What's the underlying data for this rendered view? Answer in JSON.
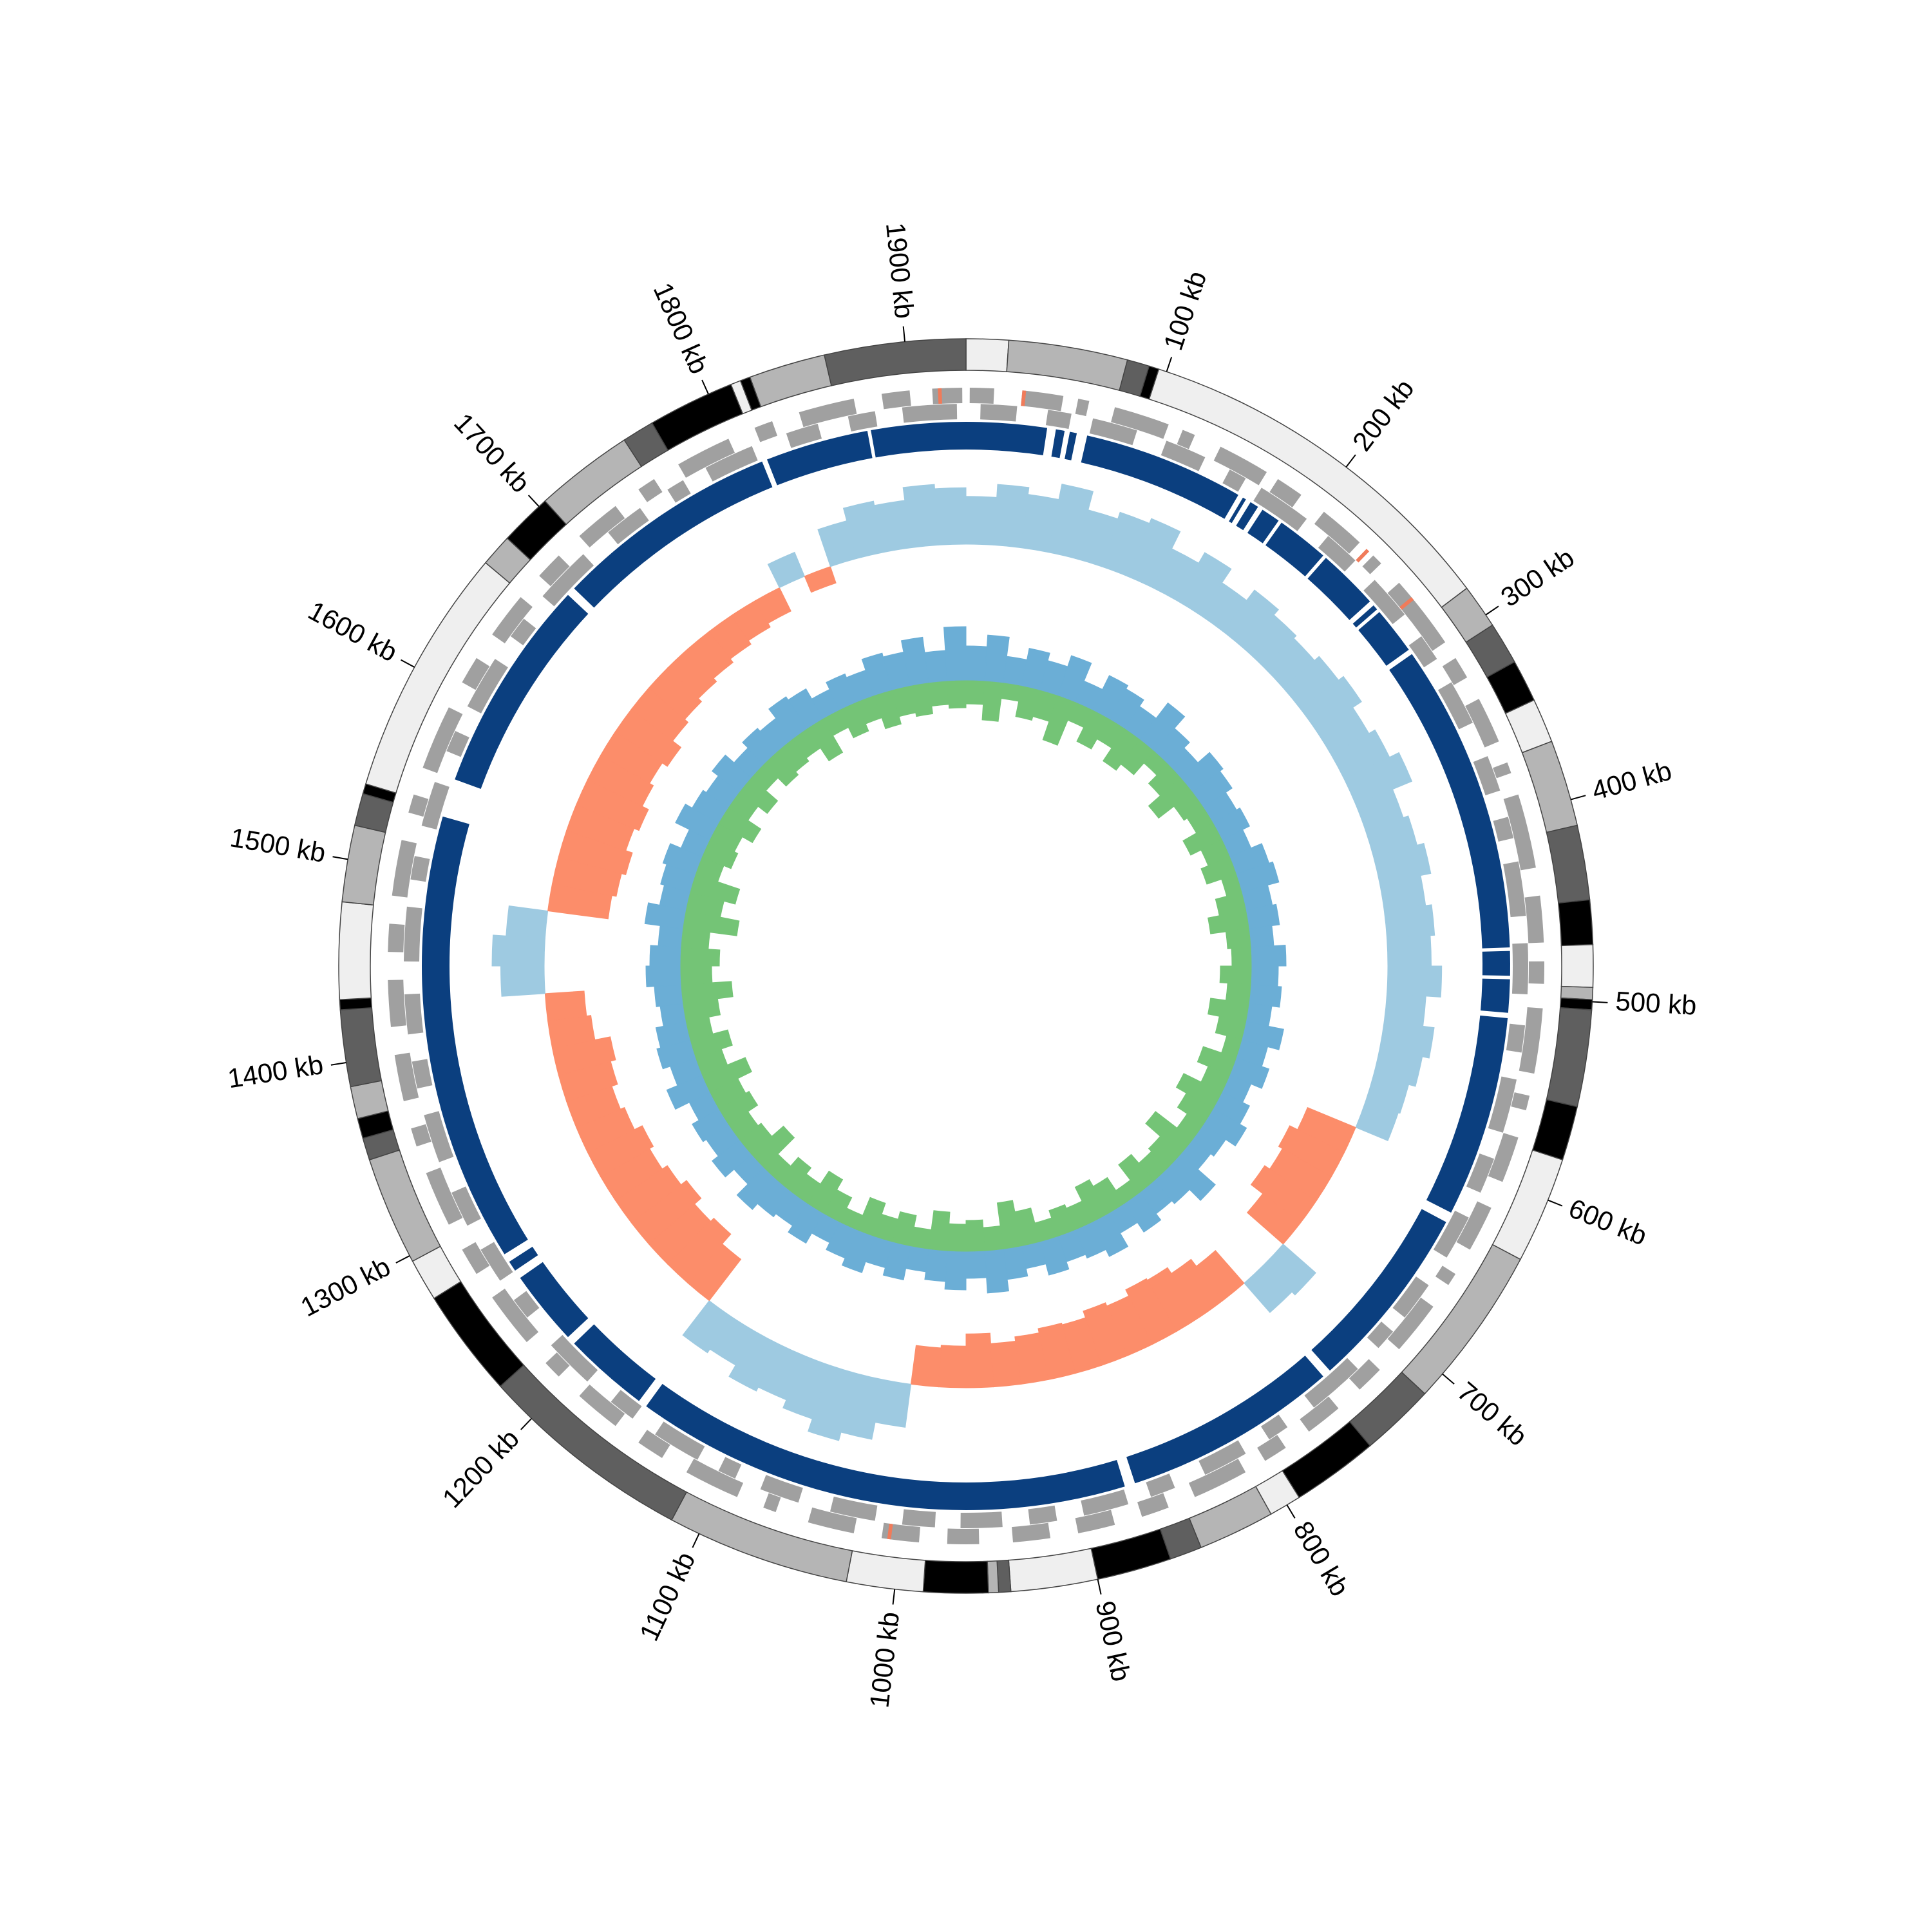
{
  "chart_data": {
    "type": "circular",
    "xlim": [
      0,
      1930
    ],
    "xticks": [
      {
        "value": 100,
        "label": "100 kb"
      },
      {
        "value": 200,
        "label": "200 kb"
      },
      {
        "value": 300,
        "label": "300 kb"
      },
      {
        "value": 400,
        "label": "400 kb"
      },
      {
        "value": 500,
        "label": "500 kb"
      },
      {
        "value": 600,
        "label": "600 kb"
      },
      {
        "value": 700,
        "label": "700 kb"
      },
      {
        "value": 800,
        "label": "800 kb"
      },
      {
        "value": 900,
        "label": "900 kb"
      },
      {
        "value": 1000,
        "label": "1000 kb"
      },
      {
        "value": 1100,
        "label": "1100 kb"
      },
      {
        "value": 1200,
        "label": "1200 kb"
      },
      {
        "value": 1300,
        "label": "1300 kb"
      },
      {
        "value": 1400,
        "label": "1400 kb"
      },
      {
        "value": 1500,
        "label": "1500 kb"
      },
      {
        "value": 1600,
        "label": "1600 kb"
      },
      {
        "value": 1700,
        "label": "1700 kb"
      },
      {
        "value": 1800,
        "label": "1800 kb"
      },
      {
        "value": 1900,
        "label": "1900 kb"
      }
    ],
    "bands": [
      {
        "start": 0,
        "end": 21,
        "color": "#efefef"
      },
      {
        "start": 21,
        "end": 80,
        "color": "#b5b5b5"
      },
      {
        "start": 80,
        "end": 91,
        "color": "#5f5f5f"
      },
      {
        "start": 91,
        "end": 96,
        "color": "#000000"
      },
      {
        "start": 96,
        "end": 284,
        "color": "#efefef"
      },
      {
        "start": 284,
        "end": 306,
        "color": "#b5b5b5"
      },
      {
        "start": 306,
        "end": 327,
        "color": "#5f5f5f"
      },
      {
        "start": 327,
        "end": 348,
        "color": "#000000"
      },
      {
        "start": 348,
        "end": 370,
        "color": "#efefef"
      },
      {
        "start": 370,
        "end": 413,
        "color": "#b5b5b5"
      },
      {
        "start": 413,
        "end": 450,
        "color": "#5f5f5f"
      },
      {
        "start": 450,
        "end": 472,
        "color": "#000000"
      },
      {
        "start": 472,
        "end": 493,
        "color": "#efefef"
      },
      {
        "start": 493,
        "end": 499,
        "color": "#b5b5b5"
      },
      {
        "start": 499,
        "end": 504,
        "color": "#000000"
      },
      {
        "start": 504,
        "end": 552,
        "color": "#5f5f5f"
      },
      {
        "start": 552,
        "end": 579,
        "color": "#000000"
      },
      {
        "start": 579,
        "end": 632,
        "color": "#efefef"
      },
      {
        "start": 632,
        "end": 713,
        "color": "#b5b5b5"
      },
      {
        "start": 713,
        "end": 750,
        "color": "#5f5f5f"
      },
      {
        "start": 750,
        "end": 793,
        "color": "#000000"
      },
      {
        "start": 793,
        "end": 809,
        "color": "#efefef"
      },
      {
        "start": 809,
        "end": 847,
        "color": "#b5b5b5"
      },
      {
        "start": 847,
        "end": 863,
        "color": "#5f5f5f"
      },
      {
        "start": 863,
        "end": 900,
        "color": "#000000"
      },
      {
        "start": 900,
        "end": 943,
        "color": "#efefef"
      },
      {
        "start": 943,
        "end": 949,
        "color": "#5f5f5f"
      },
      {
        "start": 949,
        "end": 954,
        "color": "#b5b5b5"
      },
      {
        "start": 954,
        "end": 986,
        "color": "#000000"
      },
      {
        "start": 986,
        "end": 1024,
        "color": "#efefef"
      },
      {
        "start": 1024,
        "end": 1115,
        "color": "#b5b5b5"
      },
      {
        "start": 1115,
        "end": 1222,
        "color": "#5f5f5f"
      },
      {
        "start": 1222,
        "end": 1276,
        "color": "#000000"
      },
      {
        "start": 1276,
        "end": 1297,
        "color": "#efefef"
      },
      {
        "start": 1297,
        "end": 1351,
        "color": "#b5b5b5"
      },
      {
        "start": 1351,
        "end": 1362,
        "color": "#5f5f5f"
      },
      {
        "start": 1362,
        "end": 1372,
        "color": "#000000"
      },
      {
        "start": 1372,
        "end": 1388,
        "color": "#b5b5b5"
      },
      {
        "start": 1388,
        "end": 1426,
        "color": "#5f5f5f"
      },
      {
        "start": 1426,
        "end": 1431,
        "color": "#000000"
      },
      {
        "start": 1431,
        "end": 1479,
        "color": "#efefef"
      },
      {
        "start": 1479,
        "end": 1517,
        "color": "#b5b5b5"
      },
      {
        "start": 1517,
        "end": 1533,
        "color": "#5f5f5f"
      },
      {
        "start": 1533,
        "end": 1538,
        "color": "#000000"
      },
      {
        "start": 1538,
        "end": 1662,
        "color": "#efefef"
      },
      {
        "start": 1662,
        "end": 1678,
        "color": "#b5b5b5"
      },
      {
        "start": 1678,
        "end": 1704,
        "color": "#000000"
      },
      {
        "start": 1704,
        "end": 1753,
        "color": "#b5b5b5"
      },
      {
        "start": 1753,
        "end": 1769,
        "color": "#5f5f5f"
      },
      {
        "start": 1769,
        "end": 1812,
        "color": "#000000"
      },
      {
        "start": 1812,
        "end": 1817,
        "color": "#efefef"
      },
      {
        "start": 1817,
        "end": 1822,
        "color": "#000000"
      },
      {
        "start": 1822,
        "end": 1860,
        "color": "#b5b5b5"
      },
      {
        "start": 1860,
        "end": 1930,
        "color": "#5f5f5f"
      }
    ],
    "genes": {
      "color": "#a0a0a0",
      "forward": [
        [
          2,
          15
        ],
        [
          30,
          52
        ],
        [
          60,
          66
        ],
        [
          80,
          110
        ],
        [
          118,
          125
        ],
        [
          140,
          168
        ],
        [
          175,
          190
        ],
        [
          205,
          230
        ],
        [
          240,
          246
        ],
        [
          260,
          300
        ],
        [
          310,
          322
        ],
        [
          335,
          360
        ],
        [
          372,
          378
        ],
        [
          390,
          430
        ],
        [
          445,
          470
        ],
        [
          480,
          492
        ],
        [
          505,
          540
        ],
        [
          552,
          560
        ],
        [
          575,
          600
        ],
        [
          615,
          640
        ],
        [
          655,
          662
        ],
        [
          676,
          705
        ],
        [
          720,
          735
        ],
        [
          750,
          770
        ],
        [
          785,
          798
        ],
        [
          810,
          840
        ],
        [
          855,
          870
        ],
        [
          885,
          905
        ],
        [
          920,
          940
        ],
        [
          958,
          975
        ],
        [
          990,
          1010
        ],
        [
          1025,
          1050
        ],
        [
          1068,
          1075
        ],
        [
          1090,
          1120
        ],
        [
          1135,
          1150
        ],
        [
          1165,
          1190
        ],
        [
          1205,
          1215
        ],
        [
          1230,
          1260
        ],
        [
          1275,
          1290
        ],
        [
          1305,
          1335
        ],
        [
          1350,
          1360
        ],
        [
          1375,
          1400
        ],
        [
          1415,
          1440
        ],
        [
          1455,
          1470
        ],
        [
          1485,
          1515
        ],
        [
          1530,
          1540
        ],
        [
          1555,
          1590
        ],
        [
          1605,
          1620
        ],
        [
          1635,
          1660
        ],
        [
          1675,
          1690
        ],
        [
          1705,
          1730
        ],
        [
          1745,
          1755
        ],
        [
          1770,
          1800
        ],
        [
          1815,
          1825
        ],
        [
          1840,
          1870
        ],
        [
          1885,
          1900
        ],
        [
          1912,
          1928
        ]
      ],
      "reverse": [
        [
          8,
          28
        ],
        [
          45,
          58
        ],
        [
          70,
          95
        ],
        [
          112,
          135
        ],
        [
          150,
          160
        ],
        [
          170,
          200
        ],
        [
          215,
          235
        ],
        [
          250,
          275
        ],
        [
          290,
          305
        ],
        [
          320,
          345
        ],
        [
          365,
          385
        ],
        [
          400,
          412
        ],
        [
          425,
          455
        ],
        [
          470,
          498
        ],
        [
          515,
          530
        ],
        [
          545,
          575
        ],
        [
          590,
          610
        ],
        [
          625,
          650
        ],
        [
          668,
          690
        ],
        [
          700,
          712
        ],
        [
          728,
          760
        ],
        [
          778,
          790
        ],
        [
          805,
          830
        ],
        [
          848,
          862
        ],
        [
          875,
          900
        ],
        [
          915,
          930
        ],
        [
          945,
          968
        ],
        [
          982,
          1000
        ],
        [
          1015,
          1040
        ],
        [
          1058,
          1080
        ],
        [
          1095,
          1105
        ],
        [
          1118,
          1145
        ],
        [
          1160,
          1175
        ],
        [
          1192,
          1220
        ],
        [
          1240,
          1252
        ],
        [
          1265,
          1285
        ],
        [
          1300,
          1320
        ],
        [
          1338,
          1365
        ],
        [
          1380,
          1395
        ],
        [
          1410,
          1432
        ],
        [
          1450,
          1480
        ],
        [
          1495,
          1508
        ],
        [
          1525,
          1550
        ],
        [
          1568,
          1580
        ],
        [
          1595,
          1625
        ],
        [
          1640,
          1652
        ],
        [
          1668,
          1700
        ],
        [
          1718,
          1740
        ],
        [
          1758,
          1768
        ],
        [
          1782,
          1810
        ],
        [
          1830,
          1848
        ],
        [
          1865,
          1880
        ],
        [
          1895,
          1925
        ]
      ]
    },
    "rna": {
      "color": "#f07b5a",
      "features": [
        [
          30,
          32
        ],
        [
          235,
          237
        ],
        [
          270,
          272
        ],
        [
          1005,
          1007
        ],
        [
          1915,
          1917
        ]
      ]
    },
    "contigs": {
      "color": "#0b3f7f",
      "blocks": [
        [
          0,
          46
        ],
        [
          51,
          56
        ],
        [
          59,
          63
        ],
        [
          69,
          161
        ],
        [
          164,
          166
        ],
        [
          169,
          174
        ],
        [
          177,
          188
        ],
        [
          190,
          220
        ],
        [
          222,
          257
        ],
        [
          260,
          263
        ],
        [
          265,
          292
        ],
        [
          295,
          472
        ],
        [
          474,
          488
        ],
        [
          490,
          509
        ],
        [
          512,
          627
        ],
        [
          633,
          740
        ],
        [
          745,
          868
        ],
        [
          874,
          1158
        ],
        [
          1163,
          1212
        ],
        [
          1217,
          1260
        ],
        [
          1265,
          1271
        ],
        [
          1276,
          1533
        ],
        [
          1555,
          1678
        ],
        [
          1683,
          1812
        ],
        [
          1815,
          1874
        ],
        [
          1876,
          1930
        ]
      ]
    },
    "skew": {
      "positive_color": "#9ecae1",
      "negative_color": "#fc8d6a",
      "ylim": [
        -1,
        1
      ],
      "values": [
        0.55,
        0.7,
        0.62,
        0.8,
        0.58,
        0.66,
        0.72,
        0.5,
        0.64,
        0.45,
        0.6,
        0.52,
        0.48,
        0.55,
        0.62,
        0.5,
        0.58,
        0.7,
        0.46,
        0.52,
        0.6,
        0.48,
        0.55,
        0.5,
        0.62,
        0.45,
        0.58,
        0.5,
        0.42,
        0.4,
        -0.6,
        -0.7,
        -0.65,
        -0.72,
        -0.55,
        0.5,
        0.45,
        -0.5,
        -0.6,
        -0.68,
        -0.7,
        -0.62,
        -0.66,
        -0.58,
        -0.6,
        -0.55,
        -0.5,
        -0.62,
        -0.48,
        -0.45,
        0.5,
        0.7,
        0.8,
        0.65,
        0.55,
        0.6,
        0.45,
        0.5,
        -0.6,
        -0.75,
        -0.7,
        -0.8,
        -0.72,
        -0.65,
        -0.7,
        -0.6,
        -0.55,
        -0.62,
        -0.68,
        -0.5,
        -0.45,
        0.5,
        0.6,
        0.45,
        -0.7,
        -0.75,
        -0.8,
        -0.72,
        -0.78,
        -0.7,
        -0.65,
        -0.72,
        -0.6,
        -0.55,
        -0.5,
        -0.45,
        -0.4,
        -0.35,
        -0.3,
        0.3,
        -0.2,
        0.45,
        0.6,
        0.55,
        0.7,
        0.65
      ]
    },
    "gc": {
      "ylim": [
        -1,
        1
      ],
      "series": [
        {
          "color": "#6baed6",
          "values": [
            0.45,
            0.6,
            0.35,
            0.5,
            0.4,
            0.55,
            0.3,
            0.5,
            0.45,
            0.35,
            0.6,
            0.4,
            0.3,
            0.5,
            0.45,
            0.35,
            0.4,
            0.3,
            0.45,
            0.5,
            0.35,
            0.4,
            0.3,
            0.45,
            0.35,
            0.4,
            0.3,
            0.5,
            0.35,
            0.45,
            0.3,
            0.4,
            0.5,
            0.35,
            0.3,
            0.6,
            0.4,
            0.35,
            0.45,
            0.3,
            0.5,
            0.4,
            0.35,
            0.45,
            0.3,
            0.4,
            0.55,
            0.35,
            0.5,
            0.4,
            0.3,
            0.45,
            0.35,
            0.5,
            0.4,
            0.3,
            0.45,
            0.35,
            0.4,
            0.5,
            0.3,
            0.45,
            0.35,
            0.4,
            0.3,
            0.5,
            0.35,
            0.45,
            0.4,
            0.3,
            0.35,
            0.45,
            0.4,
            0.3,
            0.5,
            0.35,
            0.4,
            0.45,
            0.3,
            0.5,
            0.4,
            0.35,
            0.45,
            0.3,
            0.4,
            0.35,
            0.5,
            0.45,
            0.3,
            0.4,
            0.35,
            0.5,
            0.45,
            0.6,
            0.4,
            0.7
          ]
        },
        {
          "color": "#74c476",
          "values": [
            -0.3,
            -0.5,
            -0.2,
            -0.4,
            -0.35,
            -0.6,
            -0.25,
            -0.45,
            -0.3,
            -0.5,
            -0.4,
            -0.2,
            -0.35,
            -0.55,
            -0.3,
            -0.25,
            -0.45,
            -0.3,
            -0.4,
            -0.2,
            -0.35,
            -0.5,
            -0.3,
            -0.25,
            -0.4,
            -0.3,
            -0.5,
            -0.35,
            -0.2,
            -0.45,
            -0.3,
            -0.55,
            -0.4,
            -0.25,
            -0.6,
            -0.35,
            -0.3,
            -0.45,
            -0.2,
            -0.4,
            -0.5,
            -0.3,
            -0.35,
            -0.25,
            -0.45,
            -0.6,
            -0.3,
            -0.4,
            -0.35,
            -0.5,
            -0.25,
            -0.4,
            -0.3,
            -0.45,
            -0.2,
            -0.35,
            -0.5,
            -0.3,
            -0.4,
            -0.25,
            -0.55,
            -0.35,
            -0.3,
            -0.45,
            -0.4,
            -0.6,
            -0.35,
            -0.5,
            -0.3,
            -0.45,
            -0.65,
            -0.4,
            -0.5,
            -0.35,
            -0.7,
            -0.45,
            -0.6,
            -0.3,
            -0.4,
            -0.35,
            -0.5,
            -0.3,
            -0.45,
            -0.25,
            -0.4,
            -0.35,
            -0.3,
            -0.5,
            -0.25,
            -0.4,
            -0.3,
            -0.45,
            -0.35,
            -0.4,
            -0.3,
            -0.35
          ]
        }
      ]
    }
  }
}
